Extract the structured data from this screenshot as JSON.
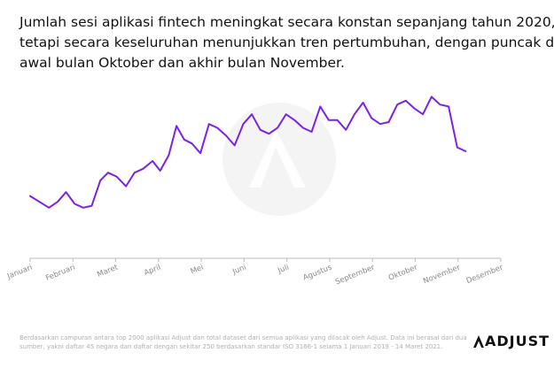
{
  "title_lines": [
    "Jumlah sesi aplikasi fintech meningkat secara konstan sepanjang tahun 2020,",
    "tetapi secara keseluruhan menunjukkan tren pertumbuhan, dengan puncak di",
    "awal bulan Oktober dan akhir bulan November."
  ],
  "footnote_lines": [
    "Berdasarkan campuran antara top 2000 aplikasi Adjust dan total dataset dari semua aplikasi yang dilacak oleh Adjust. Data ini berasal dari dua",
    "sumber, yakni daftar 45 negara dan daftar dengan sekitar 250 berdasarkan standar ISO 3166-1 selama 1 Januari 2019 - 14 Maret 2021."
  ],
  "brand": {
    "name": "ADJUST",
    "logo_icon": "adjust-chevron-icon"
  },
  "colors": {
    "line": "#7a22e6",
    "axis": "#bbbbbb",
    "text": "#111111",
    "tick_text": "#888888",
    "watermark": "#f4f4f4"
  },
  "chart_data": {
    "type": "line",
    "title": "",
    "xlabel": "",
    "ylabel": "",
    "y_axis_visible": false,
    "grid": false,
    "categories": [
      "Januari",
      "Februari",
      "Maret",
      "April",
      "Mei",
      "Juni",
      "Juli",
      "Agustus",
      "September",
      "Oktober",
      "November",
      "Desember"
    ],
    "x_range": [
      0,
      11
    ],
    "ylim": [
      0,
      100
    ],
    "series": [
      {
        "name": "",
        "points": [
          [
            0.0,
            32
          ],
          [
            0.22,
            29
          ],
          [
            0.44,
            26
          ],
          [
            0.64,
            29
          ],
          [
            0.84,
            34
          ],
          [
            1.04,
            28
          ],
          [
            1.24,
            26
          ],
          [
            1.44,
            27
          ],
          [
            1.64,
            40
          ],
          [
            1.82,
            44
          ],
          [
            2.02,
            42
          ],
          [
            2.24,
            37
          ],
          [
            2.44,
            44
          ],
          [
            2.64,
            46
          ],
          [
            2.86,
            50
          ],
          [
            3.04,
            45
          ],
          [
            3.24,
            53
          ],
          [
            3.42,
            68
          ],
          [
            3.6,
            61
          ],
          [
            3.78,
            59
          ],
          [
            3.98,
            54
          ],
          [
            4.18,
            69
          ],
          [
            4.38,
            67
          ],
          [
            4.58,
            63
          ],
          [
            4.78,
            58
          ],
          [
            4.98,
            69
          ],
          [
            5.18,
            74
          ],
          [
            5.38,
            66
          ],
          [
            5.58,
            64
          ],
          [
            5.78,
            67
          ],
          [
            5.98,
            74
          ],
          [
            6.18,
            71
          ],
          [
            6.38,
            67
          ],
          [
            6.58,
            65
          ],
          [
            6.78,
            78
          ],
          [
            6.98,
            71
          ],
          [
            7.18,
            71
          ],
          [
            7.38,
            66
          ],
          [
            7.58,
            74
          ],
          [
            7.78,
            80
          ],
          [
            7.98,
            72
          ],
          [
            8.18,
            69
          ],
          [
            8.38,
            70
          ],
          [
            8.58,
            79
          ],
          [
            8.78,
            81
          ],
          [
            8.98,
            77
          ],
          [
            9.18,
            74
          ],
          [
            9.38,
            83
          ],
          [
            9.58,
            79
          ],
          [
            9.78,
            78
          ],
          [
            9.98,
            57
          ],
          [
            10.18,
            55
          ]
        ]
      }
    ]
  }
}
